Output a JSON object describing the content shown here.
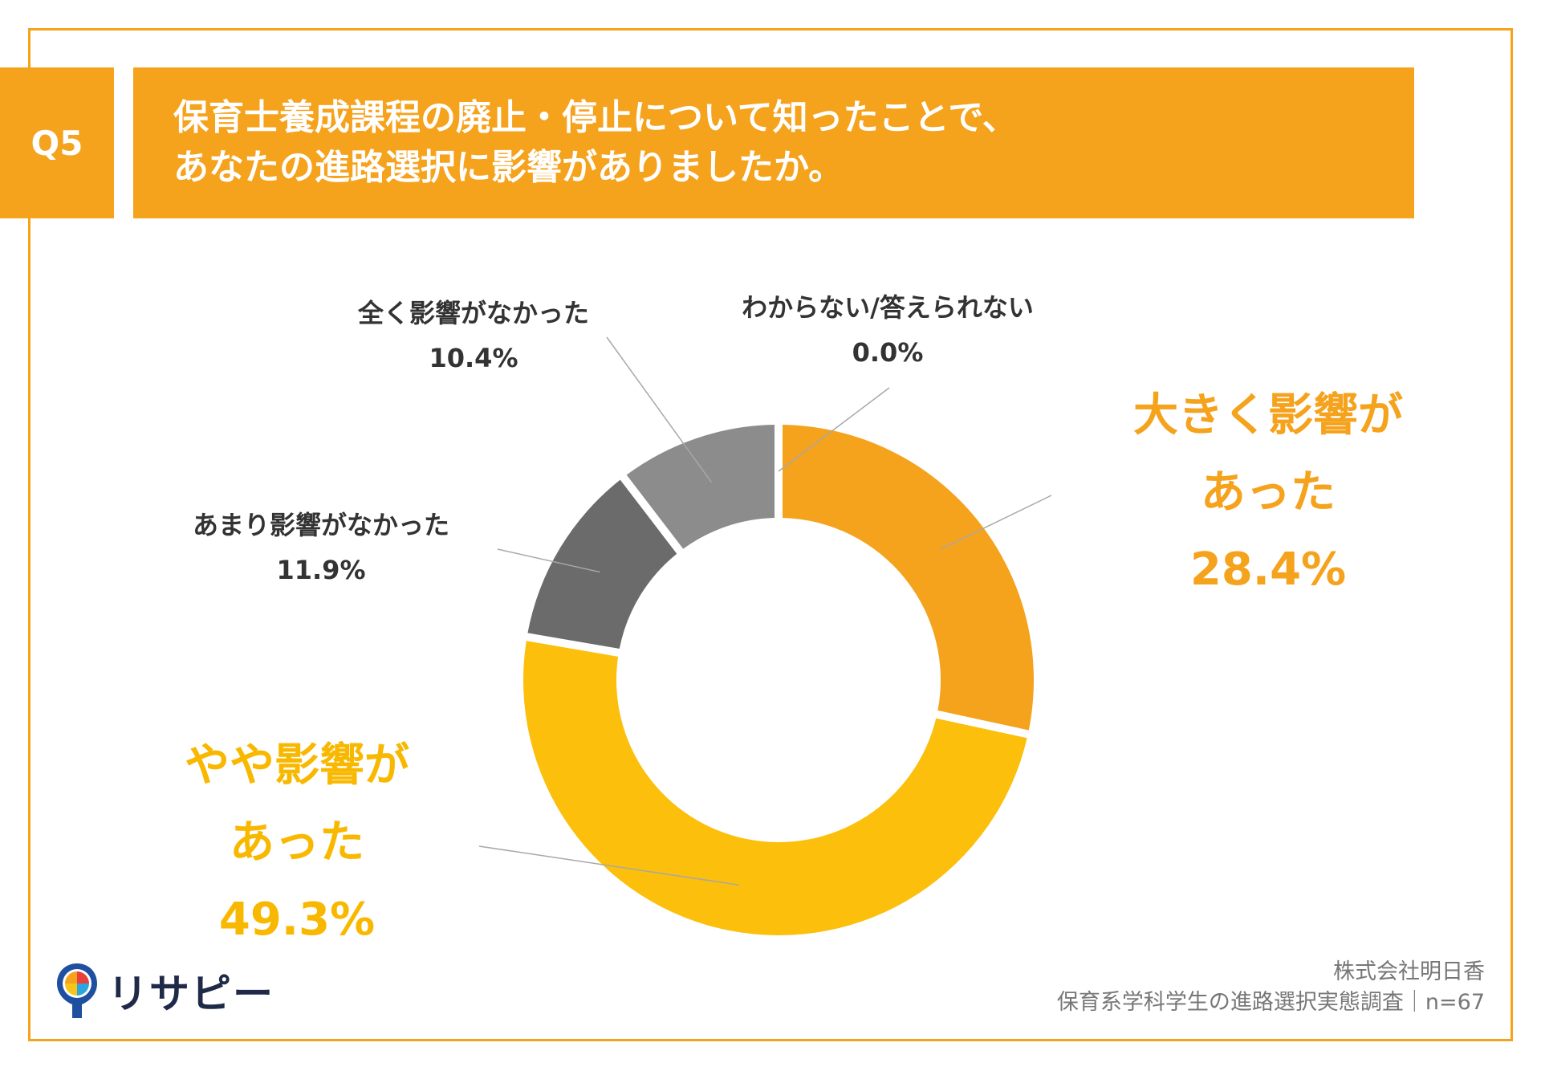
{
  "question_no": "Q5",
  "title_lines": [
    "保育士養成課程の廃止・停止について知ったことで、",
    "あなたの進路選択に影響がありましたか。"
  ],
  "chart_data": {
    "type": "pie",
    "variant": "donut",
    "title": "保育士養成課程の廃止・停止について知ったことで、あなたの進路選択に影響がありましたか。",
    "categories": [
      "大きく影響があった",
      "やや影響があった",
      "あまり影響がなかった",
      "全く影響がなかった",
      "わからない/答えられない"
    ],
    "values": [
      28.4,
      49.3,
      11.9,
      10.4,
      0.0
    ],
    "value_labels": [
      "28.4%",
      "49.3%",
      "11.9%",
      "10.4%",
      "0.0%"
    ],
    "label_lines": [
      [
        "大きく影響が",
        "あった"
      ],
      [
        "やや影響が",
        "あった"
      ],
      [
        "あまり影響がなかった"
      ],
      [
        "全く影響がなかった"
      ],
      [
        "わからない/答えられない"
      ]
    ],
    "colors": [
      "#F5A21C",
      "#FBBF0C",
      "#6B6B6B",
      "#8C8C8C",
      "#BDBDBD"
    ],
    "unit": "%",
    "start_angle_deg": 0,
    "direction": "clockwise"
  },
  "logo": {
    "text": "リサピー",
    "icon": "pin-logo-icon"
  },
  "source": {
    "line1": "株式会社明日香",
    "line2": "保育系学科学生の進路選択実態調査｜n=67"
  }
}
